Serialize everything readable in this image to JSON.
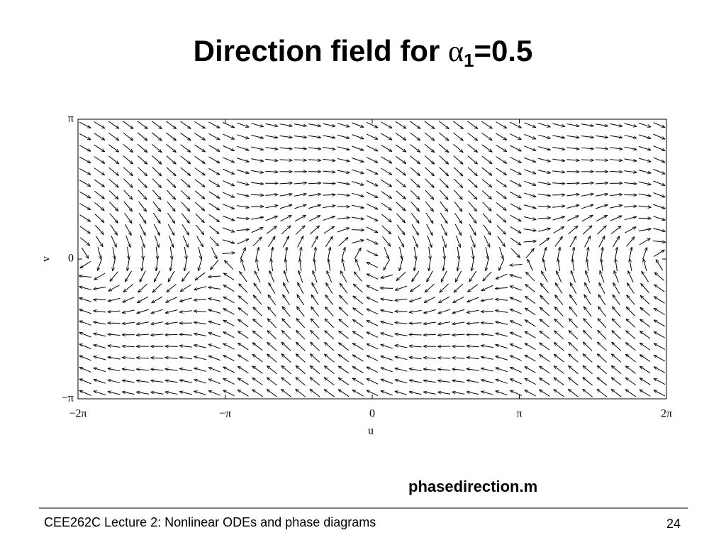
{
  "chart_data": {
    "type": "quiver",
    "title": {
      "text": "Direction field for ",
      "symbol": "α",
      "subscript": "1",
      "parameter": {
        "value": 0.5,
        "label": "=0.5"
      }
    },
    "xlabel": "u",
    "ylabel": "v",
    "xlim": [
      -6.283185307,
      6.283185307
    ],
    "ylim": [
      -3.141592654,
      3.141592654
    ],
    "xticks": [
      {
        "value": -6.283185307,
        "label": "−2π"
      },
      {
        "value": -3.141592654,
        "label": "−π"
      },
      0,
      {
        "value": 3.141592654,
        "label": "π"
      },
      {
        "value": 6.283185307,
        "label": "2π"
      }
    ],
    "yticks": [
      {
        "value": -3.141592654,
        "label": "−π"
      },
      0,
      {
        "value": 3.141592654,
        "label": "π"
      }
    ],
    "color": "#000000"
  },
  "caption": "phasedirection.m",
  "footer": {
    "left": "CEE262C Lecture 2: Nonlinear ODEs and phase diagrams",
    "page": "24"
  }
}
